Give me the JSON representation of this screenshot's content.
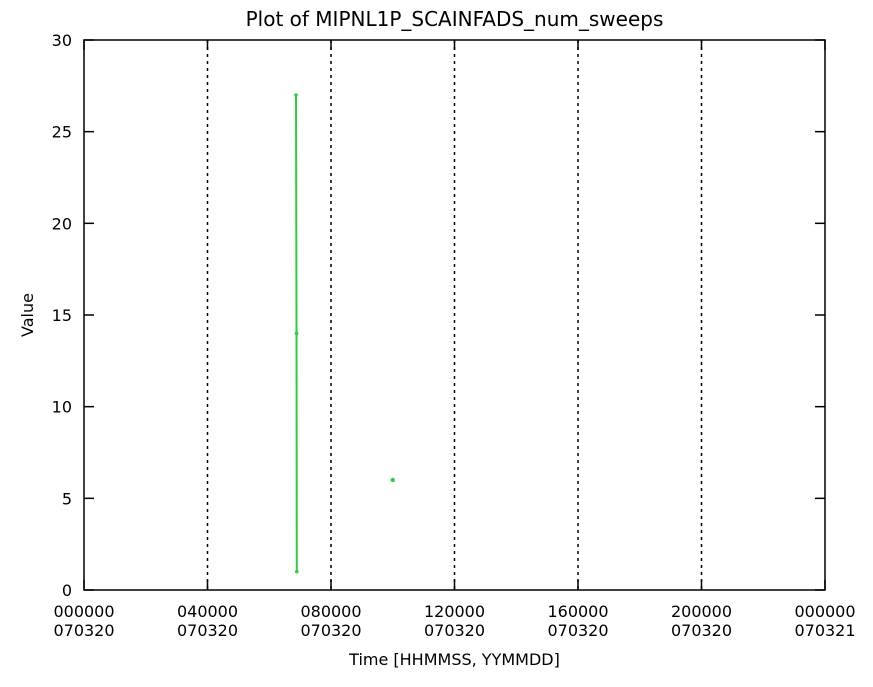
{
  "chart_data": {
    "type": "line",
    "title": "Plot of MIPNL1P_SCAINFADS_num_sweeps",
    "xlabel": "Time [HHMMSS, YYMMDD]",
    "ylabel": "Value",
    "x_axis_kind": "datetime",
    "xlim": [
      "2007-03-20 00:00:00",
      "2007-03-21 00:00:00"
    ],
    "ylim": [
      0,
      30
    ],
    "x_ticks": [
      {
        "value": "2007-03-20 00:00:00",
        "line1": "000000",
        "line2": "070320"
      },
      {
        "value": "2007-03-20 04:00:00",
        "line1": "040000",
        "line2": "070320"
      },
      {
        "value": "2007-03-20 08:00:00",
        "line1": "080000",
        "line2": "070320"
      },
      {
        "value": "2007-03-20 12:00:00",
        "line1": "120000",
        "line2": "070320"
      },
      {
        "value": "2007-03-20 16:00:00",
        "line1": "160000",
        "line2": "070320"
      },
      {
        "value": "2007-03-20 20:00:00",
        "line1": "200000",
        "line2": "070320"
      },
      {
        "value": "2007-03-21 00:00:00",
        "line1": "000000",
        "line2": "070321"
      }
    ],
    "y_ticks": [
      {
        "value": 0,
        "label": "0"
      },
      {
        "value": 5,
        "label": "5"
      },
      {
        "value": 10,
        "label": "10"
      },
      {
        "value": 15,
        "label": "15"
      },
      {
        "value": 20,
        "label": "20"
      },
      {
        "value": 25,
        "label": "25"
      },
      {
        "value": 30,
        "label": "30"
      }
    ],
    "grid": {
      "x_major": true,
      "y_major": false,
      "style": "dotted"
    },
    "series": [
      {
        "color": "#2ecc40",
        "points": [
          {
            "x": "2007-03-20 06:52:00",
            "y": 27
          },
          {
            "x": "2007-03-20 06:53:00",
            "y": 14
          },
          {
            "x": "2007-03-20 06:53:30",
            "y": 1
          },
          {
            "x": "2007-03-20 10:00:00",
            "y": 6
          }
        ]
      }
    ]
  }
}
